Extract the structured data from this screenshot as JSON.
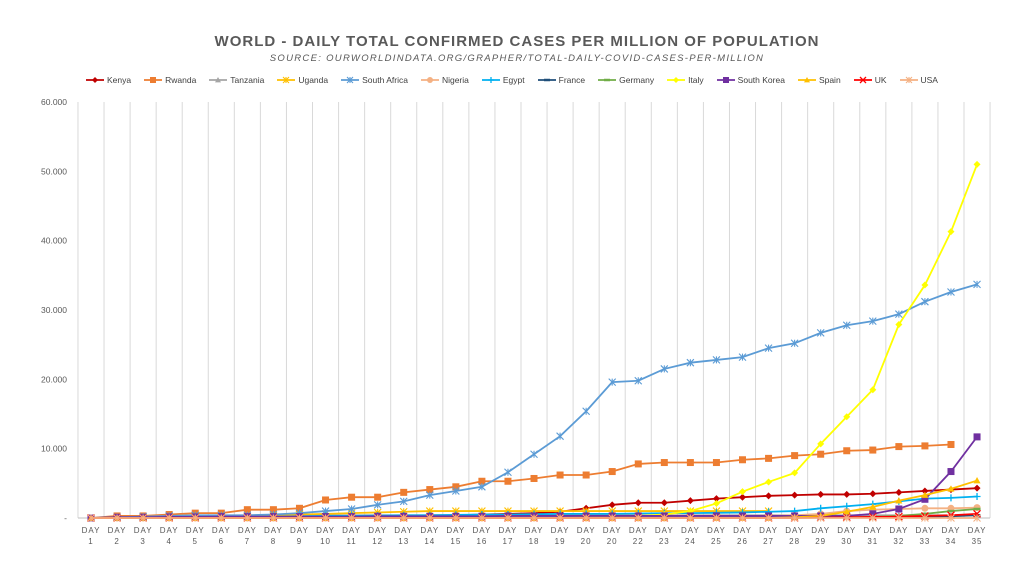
{
  "chart_data": {
    "type": "line",
    "title": "WORLD - DAILY TOTAL CONFIRMED CASES PER MILLION OF POPULATION",
    "subtitle": "SOURCE: OURWORLDINDATA.ORG/GRAPHER/TOTAL-DAILY-COVID-CASES-PER-MILLION",
    "xlabel": "",
    "ylabel": "",
    "ylim": [
      0,
      60000
    ],
    "yticks": [
      0,
      10000,
      20000,
      30000,
      40000,
      50000,
      60000
    ],
    "ytick_labels": [
      "-",
      "10.000",
      "20.000",
      "30.000",
      "40.000",
      "50.000",
      "60.000"
    ],
    "grid": "vertical",
    "legend": "top",
    "categories": [
      "DAY 1",
      "DAY 2",
      "DAY 3",
      "DAY 4",
      "DAY 5",
      "DAY 6",
      "DAY 7",
      "DAY 8",
      "DAY 9",
      "DAY 10",
      "DAY 11",
      "DAY 12",
      "DAY 13",
      "DAY 14",
      "DAY 15",
      "DAY 16",
      "DAY 17",
      "DAY 18",
      "DAY 19",
      "DAY 20",
      "DAY 20",
      "DAY 22",
      "DAY 23",
      "DAY 24",
      "DAY 25",
      "DAY 26",
      "DAY 27",
      "DAY 28",
      "DAY 29",
      "DAY 30",
      "DAY 31",
      "DAY 32",
      "DAY 33",
      "DAY 34",
      "DAY 35"
    ],
    "series": [
      {
        "name": "Kenya",
        "color": "#c00000",
        "marker": "diamond",
        "values": [
          0,
          0,
          0,
          0,
          0,
          0,
          0,
          50,
          80,
          100,
          150,
          300,
          300,
          400,
          400,
          500,
          600,
          700,
          900,
          1400,
          1900,
          2200,
          2200,
          2500,
          2800,
          3000,
          3200,
          3300,
          3400,
          3400,
          3500,
          3700,
          3900,
          4100,
          4300
        ]
      },
      {
        "name": "Rwanda",
        "color": "#ed7d31",
        "marker": "square",
        "values": [
          0,
          300,
          300,
          500,
          700,
          700,
          1200,
          1200,
          1400,
          2600,
          3000,
          3000,
          3700,
          4100,
          4500,
          5300,
          5300,
          5700,
          6200,
          6200,
          6700,
          7800,
          8000,
          8000,
          8000,
          8400,
          8600,
          9000,
          9200,
          9700,
          9800,
          10300,
          10400,
          10600,
          null
        ]
      },
      {
        "name": "Tanzania",
        "color": "#a5a5a5",
        "marker": "triangle",
        "values": [
          0,
          100,
          150,
          200,
          250,
          300,
          300,
          350,
          350,
          400,
          400,
          400,
          400,
          400,
          400,
          400,
          400,
          400,
          400,
          400,
          400,
          400,
          400,
          400,
          400,
          400,
          400,
          400,
          400,
          400,
          400,
          400,
          400,
          400,
          400
        ]
      },
      {
        "name": "Uganda",
        "color": "#ffc000",
        "marker": "asterisk",
        "values": [
          0,
          50,
          100,
          150,
          150,
          200,
          200,
          300,
          500,
          600,
          700,
          800,
          900,
          1000,
          1000,
          1000,
          1000,
          1000,
          1000,
          1000,
          1000,
          1000,
          1000,
          1000,
          1000,
          1000,
          1000,
          null,
          null,
          null,
          null,
          null,
          null,
          null,
          null
        ]
      },
      {
        "name": "South Africa",
        "color": "#5b9bd5",
        "marker": "asterisk",
        "values": [
          0,
          100,
          200,
          300,
          400,
          400,
          400,
          500,
          700,
          1000,
          1300,
          1900,
          2400,
          3300,
          3900,
          4500,
          6600,
          9200,
          11800,
          15400,
          19600,
          19800,
          21500,
          22400,
          22800,
          23200,
          24500,
          25200,
          26700,
          27800,
          28400,
          29400,
          31200,
          32600,
          33700
        ]
      },
      {
        "name": "Nigeria",
        "color": "#f4b183",
        "marker": "circle",
        "values": [
          0,
          0,
          0,
          0,
          0,
          0,
          0,
          0,
          0,
          0,
          0,
          0,
          0,
          0,
          0,
          0,
          0,
          0,
          0,
          0,
          0,
          0,
          0,
          0,
          100,
          200,
          300,
          400,
          600,
          1000,
          1200,
          1300,
          1400,
          1400,
          1500
        ]
      },
      {
        "name": "Egypt",
        "color": "#00b0f0",
        "marker": "plus",
        "values": [
          0,
          50,
          50,
          100,
          100,
          150,
          150,
          200,
          250,
          300,
          300,
          350,
          400,
          400,
          450,
          500,
          500,
          550,
          600,
          600,
          600,
          650,
          700,
          700,
          750,
          800,
          900,
          1000,
          1400,
          1700,
          2000,
          2400,
          2800,
          2900,
          3100
        ]
      },
      {
        "name": "France",
        "color": "#1f4e79",
        "marker": "dash",
        "values": [
          0,
          0,
          0,
          0,
          0,
          0,
          0,
          0,
          0,
          0,
          50,
          50,
          50,
          50,
          50,
          50,
          50,
          50,
          50,
          50,
          50,
          50,
          50,
          50,
          50,
          50,
          50,
          50,
          50,
          50,
          50,
          100,
          150,
          250,
          400
        ]
      },
      {
        "name": "Germany",
        "color": "#70ad47",
        "marker": "dash",
        "values": [
          0,
          0,
          0,
          0,
          0,
          0,
          0,
          0,
          0,
          0,
          0,
          0,
          0,
          0,
          0,
          0,
          0,
          0,
          0,
          0,
          0,
          0,
          0,
          0,
          0,
          0,
          0,
          0,
          50,
          100,
          150,
          300,
          600,
          1000,
          1300
        ]
      },
      {
        "name": "Italy",
        "color": "#ffff00",
        "marker": "diamond",
        "values": [
          0,
          0,
          0,
          0,
          0,
          0,
          0,
          0,
          0,
          0,
          0,
          0,
          0,
          0,
          0,
          0,
          0,
          0,
          0,
          100,
          200,
          300,
          500,
          1000,
          2100,
          3800,
          5200,
          6500,
          10700,
          14600,
          18500,
          27900,
          33600,
          41300,
          51000
        ]
      },
      {
        "name": "South Korea",
        "color": "#7030a0",
        "marker": "square",
        "values": [
          0,
          100,
          100,
          150,
          150,
          200,
          200,
          200,
          200,
          200,
          200,
          250,
          250,
          250,
          250,
          250,
          300,
          300,
          300,
          300,
          300,
          300,
          300,
          300,
          300,
          300,
          300,
          300,
          300,
          300,
          600,
          1300,
          2700,
          6700,
          11700
        ]
      },
      {
        "name": "Spain",
        "color": "#ffc000",
        "marker": "triangle",
        "values": [
          0,
          0,
          0,
          0,
          0,
          0,
          0,
          0,
          0,
          0,
          0,
          0,
          0,
          0,
          0,
          0,
          0,
          0,
          0,
          0,
          0,
          0,
          0,
          0,
          0,
          0,
          0,
          100,
          300,
          900,
          1600,
          2500,
          3300,
          4200,
          5400
        ]
      },
      {
        "name": "UK",
        "color": "#ff0000",
        "marker": "x",
        "values": [
          0,
          0,
          0,
          0,
          0,
          0,
          0,
          0,
          0,
          0,
          0,
          0,
          0,
          0,
          0,
          0,
          0,
          0,
          0,
          0,
          0,
          0,
          0,
          0,
          0,
          0,
          0,
          0,
          50,
          100,
          150,
          200,
          300,
          400,
          600
        ]
      },
      {
        "name": "USA",
        "color": "#f4b183",
        "marker": "asterisk",
        "values": [
          0,
          0,
          0,
          0,
          0,
          0,
          0,
          0,
          0,
          0,
          0,
          0,
          0,
          0,
          0,
          0,
          0,
          0,
          0,
          0,
          0,
          0,
          0,
          0,
          0,
          0,
          0,
          0,
          0,
          0,
          0,
          0,
          0,
          0,
          0
        ]
      }
    ]
  }
}
